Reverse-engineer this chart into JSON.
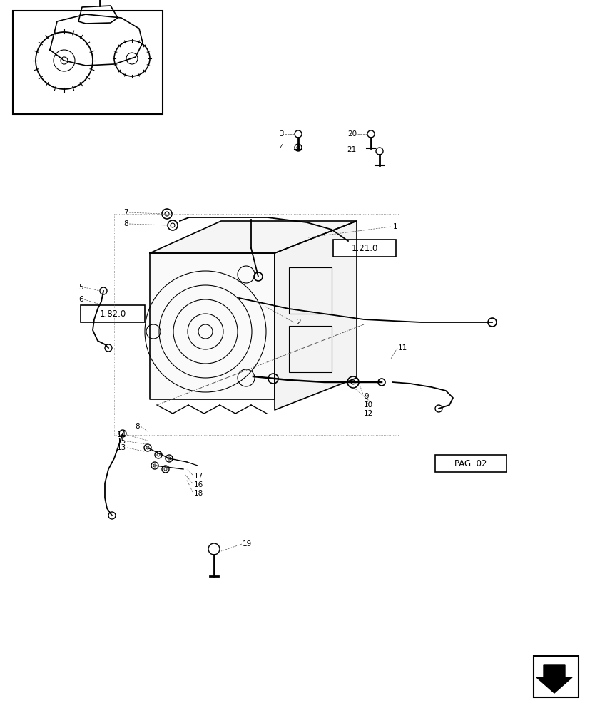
{
  "bg_color": "#ffffff",
  "line_color": "#000000",
  "label_color": "#555555",
  "fig_width": 8.28,
  "fig_height": 10.0,
  "dpi": 100
}
